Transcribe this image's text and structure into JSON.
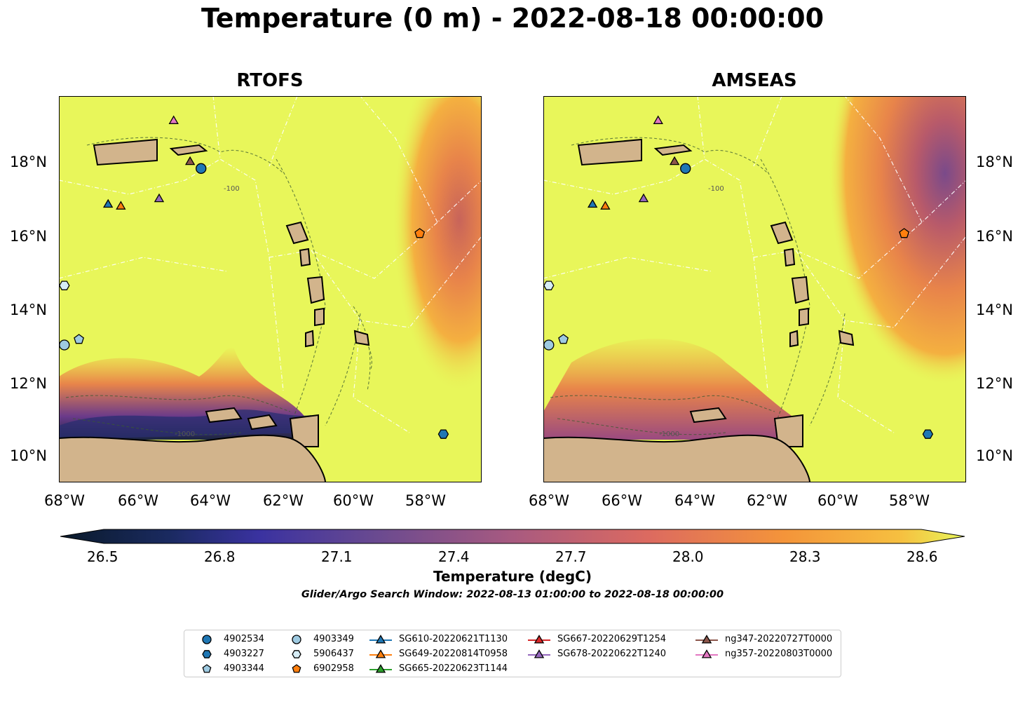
{
  "title": "Temperature (0 m) - 2022-08-18 00:00:00",
  "panels": [
    {
      "title": "RTOFS"
    },
    {
      "title": "AMSEAS"
    }
  ],
  "axes": {
    "lon_ticks": [
      "68°W",
      "66°W",
      "64°W",
      "62°W",
      "60°W",
      "58°W"
    ],
    "lat_ticks": [
      "18°N",
      "16°N",
      "14°N",
      "12°N",
      "10°N"
    ],
    "lon_range": [
      -68.2,
      -56.6
    ],
    "lat_range": [
      9.2,
      19.6
    ]
  },
  "colorbar": {
    "label": "Temperature (degC)",
    "ticks": [
      "26.5",
      "26.8",
      "27.1",
      "27.4",
      "27.7",
      "28.0",
      "28.3",
      "28.6"
    ],
    "range": [
      26.5,
      28.6
    ],
    "extend": "both"
  },
  "search_window": "Glider/Argo Search Window: 2022-08-13 01:00:00 to 2022-08-18 00:00:00",
  "contour_labels": [
    "-100",
    "-1000"
  ],
  "colors": {
    "land": "#d2b48c",
    "warm_background": "#e8f65a",
    "ocean_cool": "#1a2540",
    "argo_marker": "#1f77b4"
  },
  "legend": [
    {
      "label": "4902534",
      "marker": "circle",
      "color": "#1f77b4"
    },
    {
      "label": "4903227",
      "marker": "hexagon",
      "color": "#1f77b4"
    },
    {
      "label": "4903344",
      "marker": "pentagon",
      "color": "#9ecae1"
    },
    {
      "label": "4903349",
      "marker": "circle",
      "color": "#9ecae1"
    },
    {
      "label": "5906437",
      "marker": "hexagon",
      "color": "#d6ecf5"
    },
    {
      "label": "6902958",
      "marker": "pentagon",
      "color": "#ff7f0e"
    },
    {
      "label": "SG610-20220621T1130",
      "marker": "triangle-line",
      "color": "#1f77b4"
    },
    {
      "label": "SG649-20220814T0958",
      "marker": "triangle-line",
      "color": "#ff7f0e"
    },
    {
      "label": "SG665-20220623T1144",
      "marker": "triangle-line",
      "color": "#2ca02c"
    },
    {
      "label": "SG667-20220629T1254",
      "marker": "triangle-line",
      "color": "#d62728"
    },
    {
      "label": "SG678-20220622T1240",
      "marker": "triangle-line",
      "color": "#9467bd"
    },
    {
      "label": "ng347-20220727T0000",
      "marker": "triangle-line",
      "color": "#8c564b"
    },
    {
      "label": "ng357-20220803T0000",
      "marker": "triangle-line",
      "color": "#e377c2"
    }
  ],
  "platforms": [
    {
      "name": "4902534",
      "marker": "circle",
      "color": "#1f77b4",
      "lon": -64.3,
      "lat": 17.65
    },
    {
      "name": "4903227",
      "marker": "hexagon",
      "color": "#1f77b4",
      "lon": -57.65,
      "lat": 10.5
    },
    {
      "name": "4903344",
      "marker": "pentagon",
      "color": "#9ecae1",
      "lon": -67.65,
      "lat": 13.05
    },
    {
      "name": "4903349",
      "marker": "circle",
      "color": "#9ecae1",
      "lon": -68.05,
      "lat": 12.9
    },
    {
      "name": "5906437",
      "marker": "hexagon",
      "color": "#d6ecf5",
      "lon": -68.05,
      "lat": 14.5
    },
    {
      "name": "6902958",
      "marker": "pentagon",
      "color": "#ff7f0e",
      "lon": -58.3,
      "lat": 15.9
    },
    {
      "name": "SG610-20220621T1130",
      "marker": "triangle",
      "color": "#1f77b4",
      "lon": -66.85,
      "lat": 16.7
    },
    {
      "name": "SG649-20220814T0958",
      "marker": "triangle",
      "color": "#ff7f0e",
      "lon": -66.5,
      "lat": 16.65
    },
    {
      "name": "SG678-20220622T1240",
      "marker": "triangle",
      "color": "#9467bd",
      "lon": -65.45,
      "lat": 16.85
    },
    {
      "name": "ng347-20220727T0000",
      "marker": "triangle",
      "color": "#8c564b",
      "lon": -64.6,
      "lat": 17.85
    },
    {
      "name": "ng357-20220803T0000",
      "marker": "triangle",
      "color": "#e377c2",
      "lon": -65.05,
      "lat": 18.95
    }
  ]
}
